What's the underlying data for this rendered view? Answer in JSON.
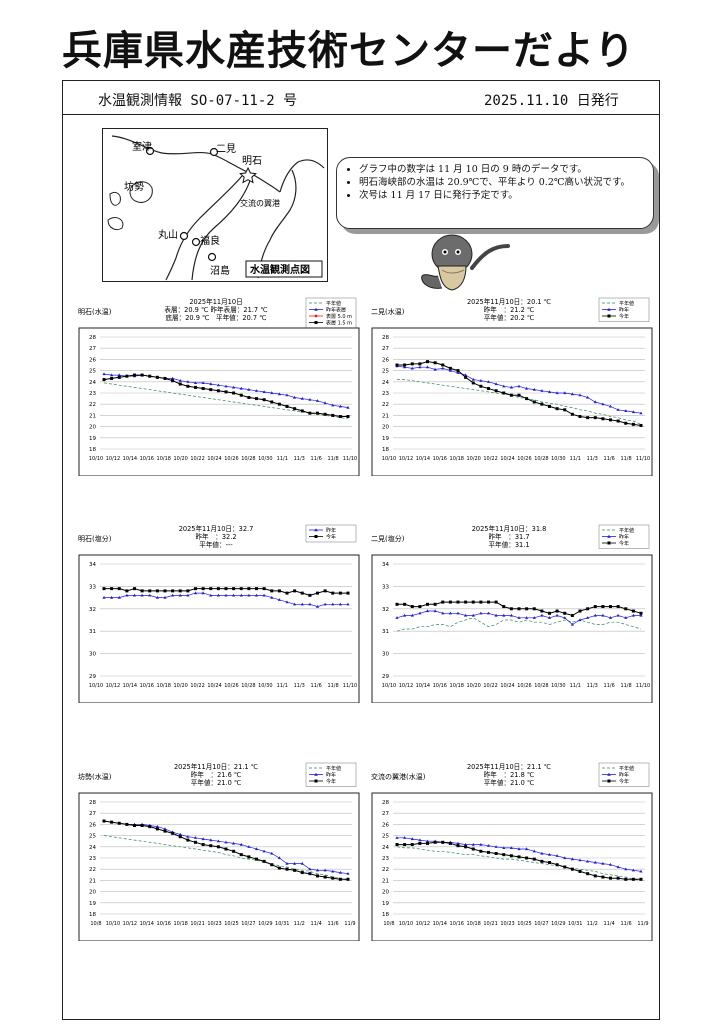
{
  "page": {
    "title": "兵庫県水産技術センターだより",
    "issue": "水温観測情報 SO-07-11-2 号",
    "issued": "2025.11.10 日発行"
  },
  "map": {
    "labels": [
      "室津",
      "二見",
      "明石",
      "坊勢",
      "交流の翼港",
      "丸山",
      "福良",
      "沼島"
    ],
    "legend": "水温観測点図"
  },
  "notice": [
    "グラフ中の数字は 11 月 10 日の 9 時のデータです。",
    "明石海峡部の水温は 20.9℃で、平年より 0.2℃高い状況です。",
    "次号は 11 月 17 日に発行予定です。"
  ],
  "colors": {
    "normal": "#2e8b57",
    "lastyear": "#1f1fe0",
    "thisyear": "#000000",
    "mid": "#e02020",
    "grid": "#bbbbbb"
  },
  "chart_data": [
    {
      "type": "line",
      "station": "明石(水温)",
      "ylim": [
        18,
        28
      ],
      "yticks": [
        18,
        19,
        20,
        21,
        22,
        23,
        24,
        25,
        26,
        27,
        28
      ],
      "info": [
        "2025年11月10日",
        "表層：20.9 ℃ 昨年表層：21.7 ℃",
        "底層：20.9 ℃　平年値：20.7 ℃"
      ],
      "xlabels": [
        "10/10",
        "10/12",
        "10/14",
        "10/16",
        "10/18",
        "10/20",
        "10/22",
        "10/24",
        "10/26",
        "10/28",
        "10/30",
        "11/1",
        "11/3",
        "11/6",
        "11/8",
        "11/10"
      ],
      "series": [
        {
          "name": "平年値",
          "style": "normal",
          "values": [
            23.9,
            23.8,
            23.7,
            23.6,
            23.5,
            23.4,
            23.3,
            23.2,
            23.1,
            23.0,
            22.9,
            22.8,
            22.7,
            22.6,
            22.5,
            22.4,
            22.3,
            22.2,
            22.1,
            22.0,
            21.9,
            21.8,
            21.7,
            21.6,
            21.5,
            21.4,
            21.3,
            21.2,
            21.1,
            21.0,
            20.9,
            20.8,
            20.7
          ]
        },
        {
          "name": "昨年表層",
          "style": "lastyear",
          "values": [
            24.7,
            24.6,
            24.6,
            24.5,
            24.5,
            24.6,
            24.5,
            24.4,
            24.3,
            24.3,
            24.1,
            24.0,
            23.9,
            23.9,
            23.8,
            23.7,
            23.6,
            23.5,
            23.4,
            23.3,
            23.2,
            23.1,
            23.0,
            22.9,
            22.8,
            22.6,
            22.5,
            22.4,
            22.3,
            22.1,
            21.9,
            21.8,
            21.7
          ]
        },
        {
          "name": "表層 5.0 m",
          "style": "mid",
          "values": [
            24.2,
            24.3,
            24.4,
            24.5,
            24.6,
            24.6,
            24.5,
            24.4,
            24.3,
            24.1,
            23.8,
            23.6,
            23.5,
            23.4,
            23.3,
            23.2,
            23.1,
            23.0,
            22.8,
            22.6,
            22.5,
            22.4,
            22.2,
            22.0,
            21.8,
            21.6,
            21.4,
            21.2,
            21.2,
            21.1,
            21.0,
            20.9,
            20.9
          ]
        },
        {
          "name": "表層 1.5 m",
          "style": "thisyear",
          "values": [
            24.2,
            24.3,
            24.4,
            24.5,
            24.6,
            24.6,
            24.5,
            24.4,
            24.3,
            24.1,
            23.8,
            23.6,
            23.5,
            23.4,
            23.3,
            23.2,
            23.1,
            23.0,
            22.8,
            22.6,
            22.5,
            22.4,
            22.2,
            22.0,
            21.8,
            21.6,
            21.4,
            21.2,
            21.2,
            21.1,
            21.0,
            20.9,
            20.9
          ]
        }
      ]
    },
    {
      "type": "line",
      "station": "二見(水温)",
      "ylim": [
        18,
        28
      ],
      "yticks": [
        18,
        19,
        20,
        21,
        22,
        23,
        24,
        25,
        26,
        27,
        28
      ],
      "info": [
        "2025年11月10日：20.1 ℃",
        "昨年　：21.2 ℃",
        "平年値：20.2 ℃"
      ],
      "xlabels": [
        "10/10",
        "10/12",
        "10/14",
        "10/16",
        "10/18",
        "10/20",
        "10/22",
        "10/24",
        "10/26",
        "10/28",
        "10/30",
        "11/1",
        "11/3",
        "11/6",
        "11/8",
        "11/10"
      ],
      "series": [
        {
          "name": "平年値",
          "style": "normal",
          "values": [
            24.2,
            24.2,
            24.1,
            24.0,
            23.9,
            23.8,
            23.7,
            23.6,
            23.5,
            23.4,
            23.3,
            23.2,
            23.1,
            23.0,
            22.9,
            22.8,
            22.6,
            22.5,
            22.4,
            22.2,
            22.1,
            22.0,
            21.8,
            21.7,
            21.5,
            21.4,
            21.2,
            21.1,
            20.9,
            20.8,
            20.6,
            20.5,
            20.2
          ]
        },
        {
          "name": "昨年",
          "style": "lastyear",
          "values": [
            25.4,
            25.3,
            25.2,
            25.3,
            25.3,
            25.1,
            25.2,
            25.0,
            24.8,
            24.6,
            24.2,
            24.1,
            24.0,
            23.8,
            23.6,
            23.5,
            23.6,
            23.4,
            23.3,
            23.2,
            23.1,
            23.0,
            23.0,
            22.9,
            22.8,
            22.6,
            22.2,
            22.0,
            21.8,
            21.5,
            21.4,
            21.3,
            21.2
          ]
        },
        {
          "name": "今年",
          "style": "thisyear",
          "values": [
            25.5,
            25.5,
            25.6,
            25.6,
            25.8,
            25.7,
            25.5,
            25.2,
            25.0,
            24.4,
            23.9,
            23.6,
            23.4,
            23.2,
            23.0,
            22.8,
            22.8,
            22.5,
            22.2,
            22.0,
            21.8,
            21.6,
            21.5,
            21.1,
            20.9,
            20.8,
            20.8,
            20.7,
            20.6,
            20.5,
            20.3,
            20.2,
            20.1
          ]
        }
      ]
    },
    {
      "type": "line",
      "station": "明石(塩分)",
      "ylim": [
        29,
        34
      ],
      "yticks": [
        29,
        30,
        31,
        32,
        33,
        34
      ],
      "info": [
        "2025年11月10日：32.7",
        "昨年　：32.2",
        "平年値：---"
      ],
      "xlabels": [
        "10/10",
        "10/12",
        "10/14",
        "10/16",
        "10/18",
        "10/20",
        "10/22",
        "10/24",
        "10/26",
        "10/28",
        "10/30",
        "11/1",
        "11/3",
        "11/6",
        "11/8",
        "11/10"
      ],
      "series": [
        {
          "name": "昨年",
          "style": "lastyear",
          "values": [
            32.5,
            32.5,
            32.5,
            32.6,
            32.6,
            32.6,
            32.6,
            32.5,
            32.5,
            32.6,
            32.6,
            32.6,
            32.7,
            32.7,
            32.6,
            32.6,
            32.6,
            32.6,
            32.6,
            32.6,
            32.6,
            32.6,
            32.5,
            32.4,
            32.3,
            32.2,
            32.2,
            32.2,
            32.1,
            32.2,
            32.2,
            32.2,
            32.2
          ]
        },
        {
          "name": "今年",
          "style": "thisyear",
          "values": [
            32.9,
            32.9,
            32.9,
            32.8,
            32.9,
            32.8,
            32.8,
            32.8,
            32.8,
            32.8,
            32.8,
            32.8,
            32.9,
            32.9,
            32.9,
            32.9,
            32.9,
            32.9,
            32.9,
            32.9,
            32.9,
            32.9,
            32.8,
            32.8,
            32.7,
            32.8,
            32.7,
            32.6,
            32.7,
            32.8,
            32.7,
            32.7,
            32.7
          ]
        }
      ]
    },
    {
      "type": "line",
      "station": "二見(塩分)",
      "ylim": [
        29,
        34
      ],
      "yticks": [
        29,
        30,
        31,
        32,
        33,
        34
      ],
      "info": [
        "2025年11月10日：31.8",
        "昨年　：31.7",
        "平年値：31.1"
      ],
      "xlabels": [
        "10/10",
        "10/12",
        "10/14",
        "10/16",
        "10/18",
        "10/20",
        "10/22",
        "10/24",
        "10/26",
        "10/28",
        "10/30",
        "11/1",
        "11/3",
        "11/6",
        "11/8",
        "11/10"
      ],
      "series": [
        {
          "name": "平年値",
          "style": "normal",
          "values": [
            31.0,
            31.1,
            31.1,
            31.2,
            31.2,
            31.3,
            31.3,
            31.2,
            31.4,
            31.5,
            31.6,
            31.4,
            31.2,
            31.3,
            31.5,
            31.5,
            31.4,
            31.5,
            31.4,
            31.4,
            31.3,
            31.4,
            31.5,
            31.4,
            31.5,
            31.4,
            31.3,
            31.3,
            31.4,
            31.4,
            31.3,
            31.2,
            31.1
          ]
        },
        {
          "name": "昨年",
          "style": "lastyear",
          "values": [
            31.6,
            31.7,
            31.7,
            31.8,
            31.9,
            31.9,
            31.8,
            31.8,
            31.8,
            31.7,
            31.7,
            31.8,
            31.8,
            31.7,
            31.7,
            31.7,
            31.6,
            31.6,
            31.6,
            31.7,
            31.6,
            31.7,
            31.6,
            31.3,
            31.5,
            31.6,
            31.7,
            31.7,
            31.6,
            31.7,
            31.6,
            31.7,
            31.7
          ]
        },
        {
          "name": "今年",
          "style": "thisyear",
          "values": [
            32.2,
            32.2,
            32.1,
            32.1,
            32.2,
            32.2,
            32.3,
            32.3,
            32.3,
            32.3,
            32.3,
            32.3,
            32.3,
            32.3,
            32.1,
            32.0,
            32.0,
            32.0,
            32.0,
            31.9,
            31.8,
            31.9,
            31.8,
            31.7,
            31.9,
            32.0,
            32.1,
            32.1,
            32.1,
            32.1,
            32.0,
            31.9,
            31.8
          ]
        }
      ]
    },
    {
      "type": "line",
      "station": "坊勢(水温)",
      "ylim": [
        18,
        28
      ],
      "yticks": [
        18,
        19,
        20,
        21,
        22,
        23,
        24,
        25,
        26,
        27,
        28
      ],
      "info": [
        "2025年11月10日：21.1 ℃",
        "昨年　：21.6 ℃",
        "平年値：21.0 ℃"
      ],
      "xlabels": [
        "10/8",
        "10/10",
        "10/12",
        "10/14",
        "10/16",
        "10/18",
        "10/21",
        "10/23",
        "10/25",
        "10/27",
        "10/29",
        "10/31",
        "11/2",
        "11/4",
        "11/6",
        "11/9"
      ],
      "series": [
        {
          "name": "平年値",
          "style": "normal",
          "values": [
            25.0,
            24.9,
            24.8,
            24.7,
            24.6,
            24.5,
            24.4,
            24.3,
            24.2,
            24.1,
            24.0,
            23.9,
            23.8,
            23.7,
            23.6,
            23.5,
            23.3,
            23.2,
            23.0,
            22.9,
            22.8,
            22.6,
            22.5,
            22.3,
            22.2,
            22.0,
            21.9,
            21.8,
            21.6,
            21.5,
            21.3,
            21.2,
            21.0
          ]
        },
        {
          "name": "昨年",
          "style": "lastyear",
          "values": [
            26.3,
            26.2,
            26.1,
            26.0,
            26.0,
            26.0,
            25.9,
            25.8,
            25.6,
            25.3,
            25.1,
            24.9,
            24.8,
            24.7,
            24.6,
            24.5,
            24.4,
            24.3,
            24.2,
            24.0,
            23.8,
            23.6,
            23.4,
            23.0,
            22.5,
            22.5,
            22.5,
            22.0,
            21.9,
            21.9,
            21.8,
            21.7,
            21.6
          ]
        },
        {
          "name": "今年",
          "style": "thisyear",
          "values": [
            26.3,
            26.2,
            26.1,
            26.0,
            25.9,
            25.9,
            25.8,
            25.6,
            25.4,
            25.2,
            24.9,
            24.6,
            24.4,
            24.2,
            24.1,
            24.0,
            23.8,
            23.6,
            23.3,
            23.1,
            22.9,
            22.7,
            22.4,
            22.1,
            22.0,
            21.9,
            21.7,
            21.6,
            21.4,
            21.3,
            21.2,
            21.1,
            21.1
          ]
        }
      ]
    },
    {
      "type": "line",
      "station": "交流の翼港(水温)",
      "ylim": [
        18,
        28
      ],
      "yticks": [
        18,
        19,
        20,
        21,
        22,
        23,
        24,
        25,
        26,
        27,
        28
      ],
      "info": [
        "2025年11月10日：21.1 ℃",
        "昨年　：21.8 ℃",
        "平年値：21.0 ℃"
      ],
      "xlabels": [
        "10/8",
        "10/10",
        "10/12",
        "10/14",
        "10/16",
        "10/18",
        "10/21",
        "10/23",
        "10/25",
        "10/27",
        "10/29",
        "10/31",
        "11/2",
        "11/4",
        "11/6",
        "11/9"
      ],
      "series": [
        {
          "name": "平年値",
          "style": "normal",
          "values": [
            24.0,
            23.9,
            23.9,
            23.8,
            23.7,
            23.6,
            23.6,
            23.5,
            23.4,
            23.3,
            23.3,
            23.2,
            23.1,
            23.0,
            22.9,
            22.9,
            22.8,
            22.7,
            22.6,
            22.5,
            22.4,
            22.3,
            22.2,
            22.1,
            22.0,
            21.9,
            21.8,
            21.6,
            21.5,
            21.4,
            21.3,
            21.1,
            21.0
          ]
        },
        {
          "name": "昨年",
          "style": "lastyear",
          "values": [
            24.8,
            24.8,
            24.7,
            24.6,
            24.5,
            24.5,
            24.4,
            24.4,
            24.3,
            24.2,
            24.2,
            24.2,
            24.1,
            24.0,
            23.9,
            23.9,
            23.8,
            23.8,
            23.6,
            23.4,
            23.3,
            23.2,
            23.0,
            22.9,
            22.8,
            22.7,
            22.6,
            22.5,
            22.4,
            22.2,
            22.0,
            21.9,
            21.8
          ]
        },
        {
          "name": "今年",
          "style": "thisyear",
          "values": [
            24.2,
            24.2,
            24.2,
            24.3,
            24.3,
            24.4,
            24.4,
            24.3,
            24.1,
            24.0,
            23.8,
            23.6,
            23.5,
            23.4,
            23.3,
            23.2,
            23.1,
            23.0,
            22.9,
            22.7,
            22.6,
            22.4,
            22.2,
            22.0,
            21.8,
            21.6,
            21.4,
            21.3,
            21.2,
            21.2,
            21.1,
            21.1,
            21.1
          ]
        }
      ]
    }
  ]
}
